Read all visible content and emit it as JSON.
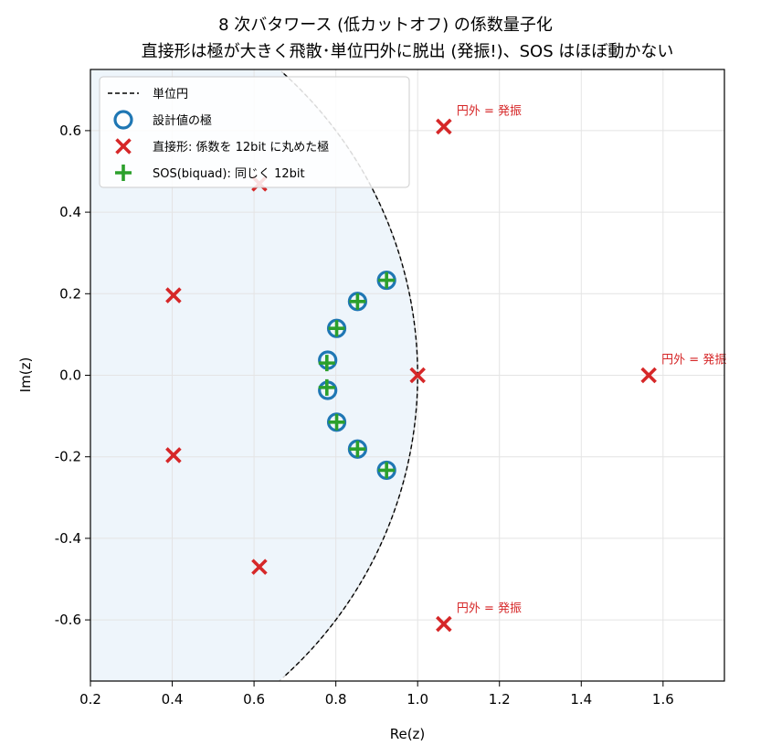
{
  "chart_data": {
    "type": "scatter",
    "title": "8 次バタワース (低カットオフ) の係数量子化",
    "subtitle": "直接形は極が大きく飛散･単位円外に脱出 (発振!)、SOS はほぼ動かない",
    "xlabel": "Re(z)",
    "ylabel": "Im(z)",
    "xlim": [
      0.2,
      1.75
    ],
    "ylim": [
      -0.75,
      0.75
    ],
    "x_ticks": [
      "0.2",
      "0.4",
      "0.6",
      "0.8",
      "1.0",
      "1.2",
      "1.4",
      "1.6"
    ],
    "y_ticks": [
      "-0.6",
      "-0.4",
      "-0.2",
      "0.0",
      "0.2",
      "0.4",
      "0.6"
    ],
    "grid": true,
    "legend_position": "top-left",
    "unit_circle": {
      "name": "単位円",
      "color": "#000000",
      "style": "dashed"
    },
    "series": [
      {
        "name": "設計値の極",
        "marker": "circle",
        "color": "#1f77b4",
        "points": [
          [
            0.924,
            0.233
          ],
          [
            0.924,
            -0.233
          ],
          [
            0.853,
            0.181
          ],
          [
            0.853,
            -0.181
          ],
          [
            0.802,
            0.115
          ],
          [
            0.802,
            -0.115
          ],
          [
            0.78,
            0.037
          ],
          [
            0.78,
            -0.037
          ]
        ]
      },
      {
        "name": "直接形: 係数を 12bit に丸めた極",
        "marker": "x",
        "color": "#d62728",
        "points": [
          [
            1.565,
            0.0
          ],
          [
            1.064,
            0.61
          ],
          [
            1.064,
            -0.61
          ],
          [
            1.0,
            0.0
          ],
          [
            0.613,
            0.47
          ],
          [
            0.613,
            -0.47
          ],
          [
            0.403,
            0.196
          ],
          [
            0.403,
            -0.196
          ]
        ]
      },
      {
        "name": "SOS(biquad): 同じく 12bit",
        "marker": "plus",
        "color": "#2ca02c",
        "points": [
          [
            0.924,
            0.233
          ],
          [
            0.924,
            -0.233
          ],
          [
            0.853,
            0.181
          ],
          [
            0.853,
            -0.181
          ],
          [
            0.802,
            0.115
          ],
          [
            0.802,
            -0.115
          ],
          [
            0.778,
            0.03
          ],
          [
            0.778,
            -0.03
          ]
        ]
      }
    ],
    "annotations": [
      {
        "text": "円外 = 発振",
        "x": 1.064,
        "y": 0.61,
        "color": "#d62728"
      },
      {
        "text": "円外 = 発振",
        "x": 1.565,
        "y": 0.0,
        "color": "#d62728"
      },
      {
        "text": "円外 = 発振",
        "x": 1.064,
        "y": -0.61,
        "color": "#d62728"
      }
    ],
    "colors": {
      "inside_fill": "#eef5fb",
      "grid": "#e4e4e4",
      "circle_outside": "#c8c8c8"
    }
  }
}
